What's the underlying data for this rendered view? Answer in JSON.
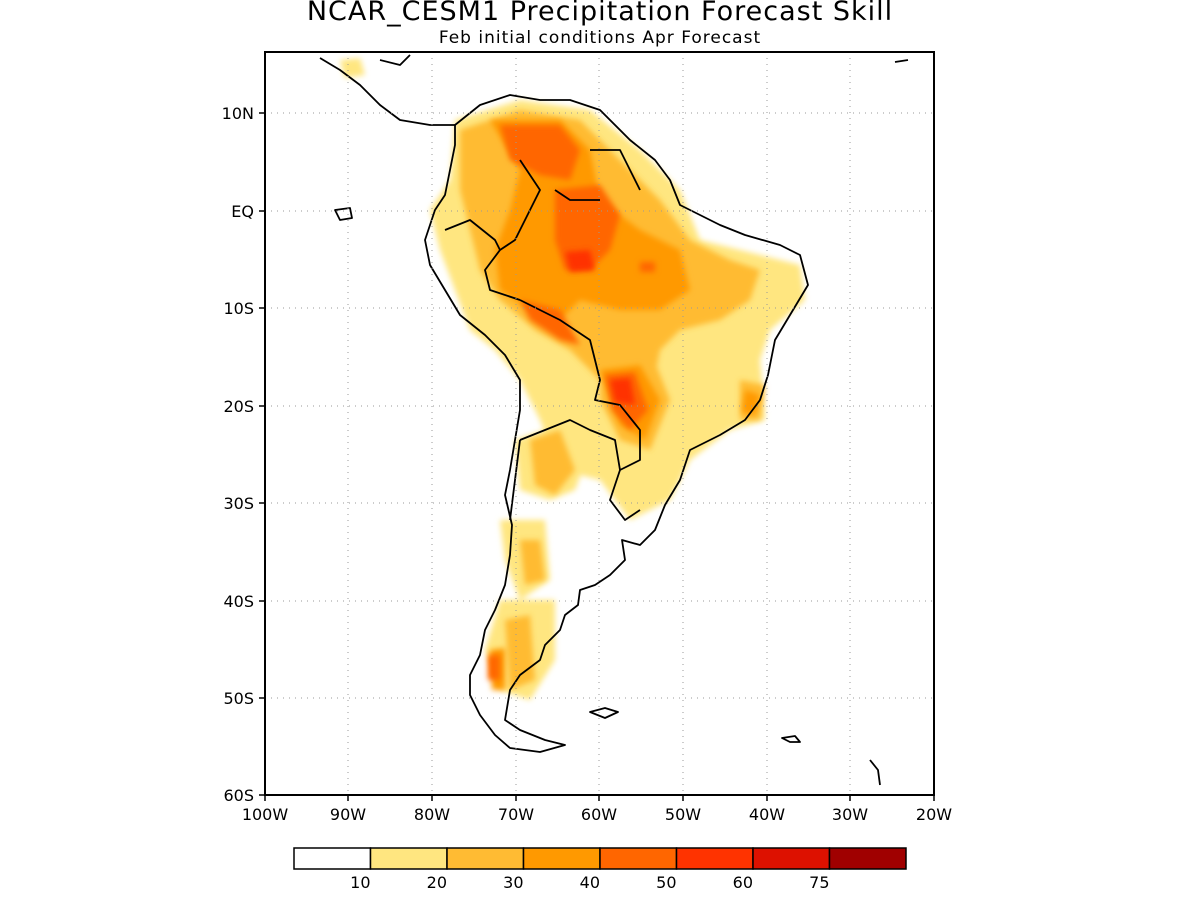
{
  "title": "NCAR_CESM1 Precipitation Forecast Skill",
  "subtitle": "Feb initial conditions  Apr Forecast",
  "map": {
    "region": "South America",
    "lon_range": [
      -100,
      -20
    ],
    "lat_range": [
      -60,
      15
    ],
    "y_ticks": [
      "10N",
      "EQ",
      "10S",
      "20S",
      "30S",
      "40S",
      "50S",
      "60S"
    ],
    "x_ticks": [
      "100W",
      "90W",
      "80W",
      "70W",
      "60W",
      "50W",
      "40W",
      "30W",
      "20W"
    ],
    "gridlines": "dotted"
  },
  "colorbar": {
    "colors": [
      "#ffffff",
      "#ffe680",
      "#ffbb33",
      "#ff9900",
      "#ff6600",
      "#ff3300",
      "#dd1100",
      "#a00000"
    ],
    "labels": [
      "10",
      "20",
      "30",
      "40",
      "50",
      "60",
      "75"
    ]
  }
}
